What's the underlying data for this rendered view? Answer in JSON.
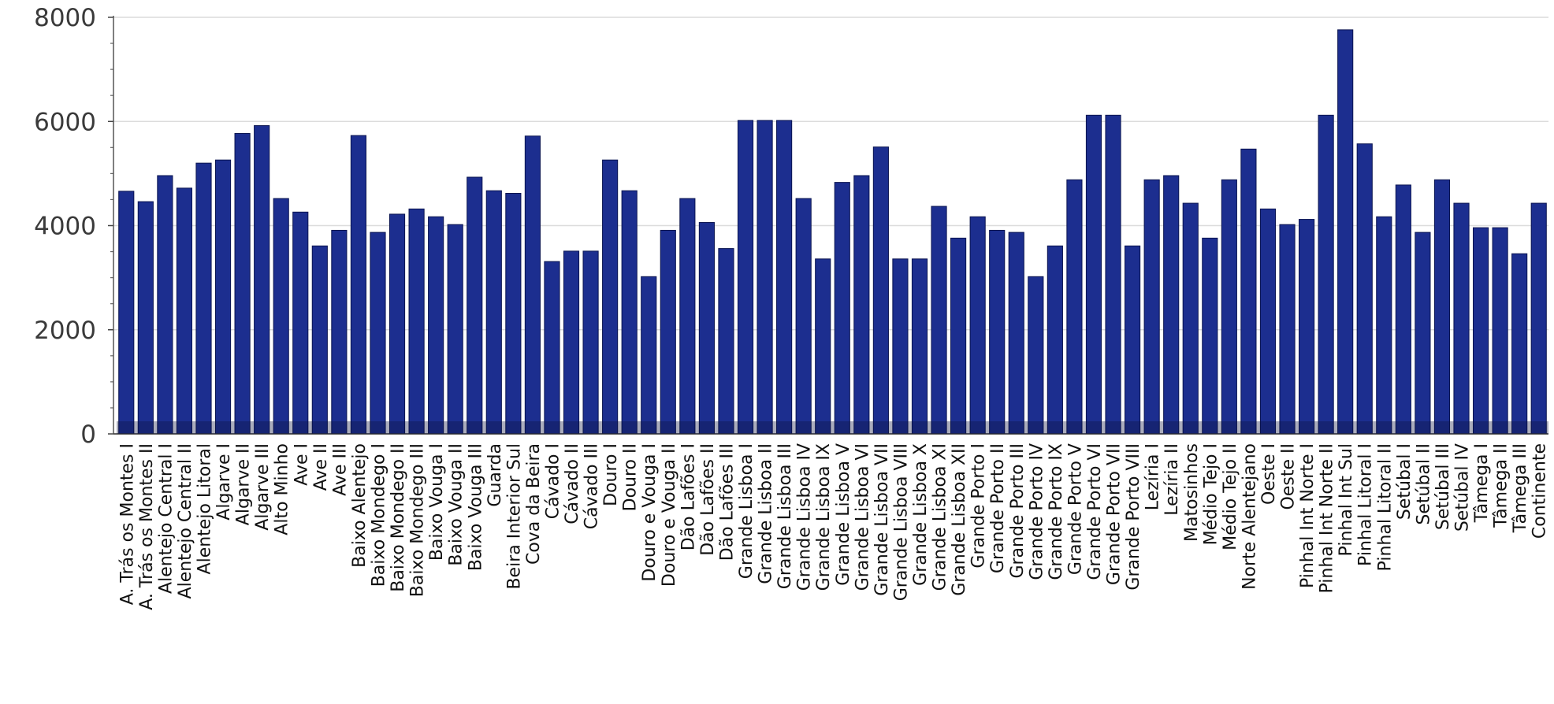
{
  "chart_data": {
    "type": "bar",
    "title": "",
    "xlabel": "",
    "ylabel": "",
    "ylim": [
      0,
      8000
    ],
    "yticks": [
      0,
      2000,
      4000,
      6000,
      8000
    ],
    "ytick_labels": [
      "0",
      "2000",
      "4000",
      "6000",
      "8000"
    ],
    "grid": "horizontal",
    "legend": "none",
    "bar_color": "#1c2e8f",
    "bar_edge_color": "#0a1450",
    "categories": [
      "A. Trás os Montes I",
      "A. Trás os Montes II",
      "Alentejo Central I",
      "Alentejo Central II",
      "Alentejo Litoral",
      "Algarve I",
      "Algarve II",
      "Algarve III",
      "Alto Minho",
      "Ave I",
      "Ave II",
      "Ave III",
      "Baixo Alentejo",
      "Baixo Mondego I",
      "Baixo Mondego II",
      "Baixo Mondego III",
      "Baixo Vouga I",
      "Baixo Vouga II",
      "Baixo Vouga III",
      "Guarda",
      "Beira Interior Sul",
      "Cova da Beira",
      "Cávado I",
      "Cávado II",
      "Cávado III",
      "Douro I",
      "Douro II",
      "Douro e Vouga I",
      "Douro e Vouga II",
      "Dão Lafões I",
      "Dão Lafões II",
      "Dão Lafões III",
      "Grande Lisboa I",
      "Grande Lisboa II",
      "Grande Lisboa III",
      "Grande Lisboa IV",
      "Grande Lisboa IX",
      "Grande Lisboa V",
      "Grande Lisboa VI",
      "Grande Lisboa VII",
      "Grande Lisboa VIII",
      "Grande Lisboa X",
      "Grande Lisboa XI",
      "Grande Lisboa XII",
      "Grande Porto I",
      "Grande Porto II",
      "Grande Porto III",
      "Grande Porto IV",
      "Grande Porto IX",
      "Grande Porto V",
      "Grande Porto VI",
      "Grande Porto VII",
      "Grande Porto VIII",
      "Lezíria I",
      "Lezíria II",
      "Matosinhos",
      "Médio Tejo I",
      "Médio Tejo II",
      "Norte Alentejano",
      "Oeste I",
      "Oeste II",
      "Pinhal Int Norte I",
      "Pinhal Int Norte II",
      "Pinhal Int Sul",
      "Pinhal Litoral I",
      "Pinhal Litoral II",
      "Setúbal I",
      "Setúbal II",
      "Setúbal III",
      "Setúbal IV",
      "Tâmega I",
      "Tâmega II",
      "Tâmega III",
      "Continente"
    ],
    "values": [
      4660,
      4460,
      4960,
      4720,
      5200,
      5260,
      5770,
      5920,
      4520,
      4260,
      3610,
      3910,
      5730,
      3870,
      4220,
      4320,
      4170,
      4020,
      4930,
      4670,
      4620,
      5720,
      3310,
      3510,
      3510,
      5260,
      4670,
      3020,
      3910,
      4520,
      4060,
      3560,
      6020,
      6020,
      6020,
      4520,
      3360,
      4830,
      4960,
      5510,
      3360,
      3360,
      4370,
      3760,
      4170,
      3910,
      3870,
      3020,
      3610,
      4880,
      6120,
      6120,
      3610,
      4880,
      4960,
      4430,
      3760,
      4880,
      5470,
      4320,
      4020,
      4120,
      6120,
      7760,
      5570,
      4170,
      4780,
      3870,
      4880,
      4430,
      3960,
      3960,
      3460,
      4430
    ]
  }
}
